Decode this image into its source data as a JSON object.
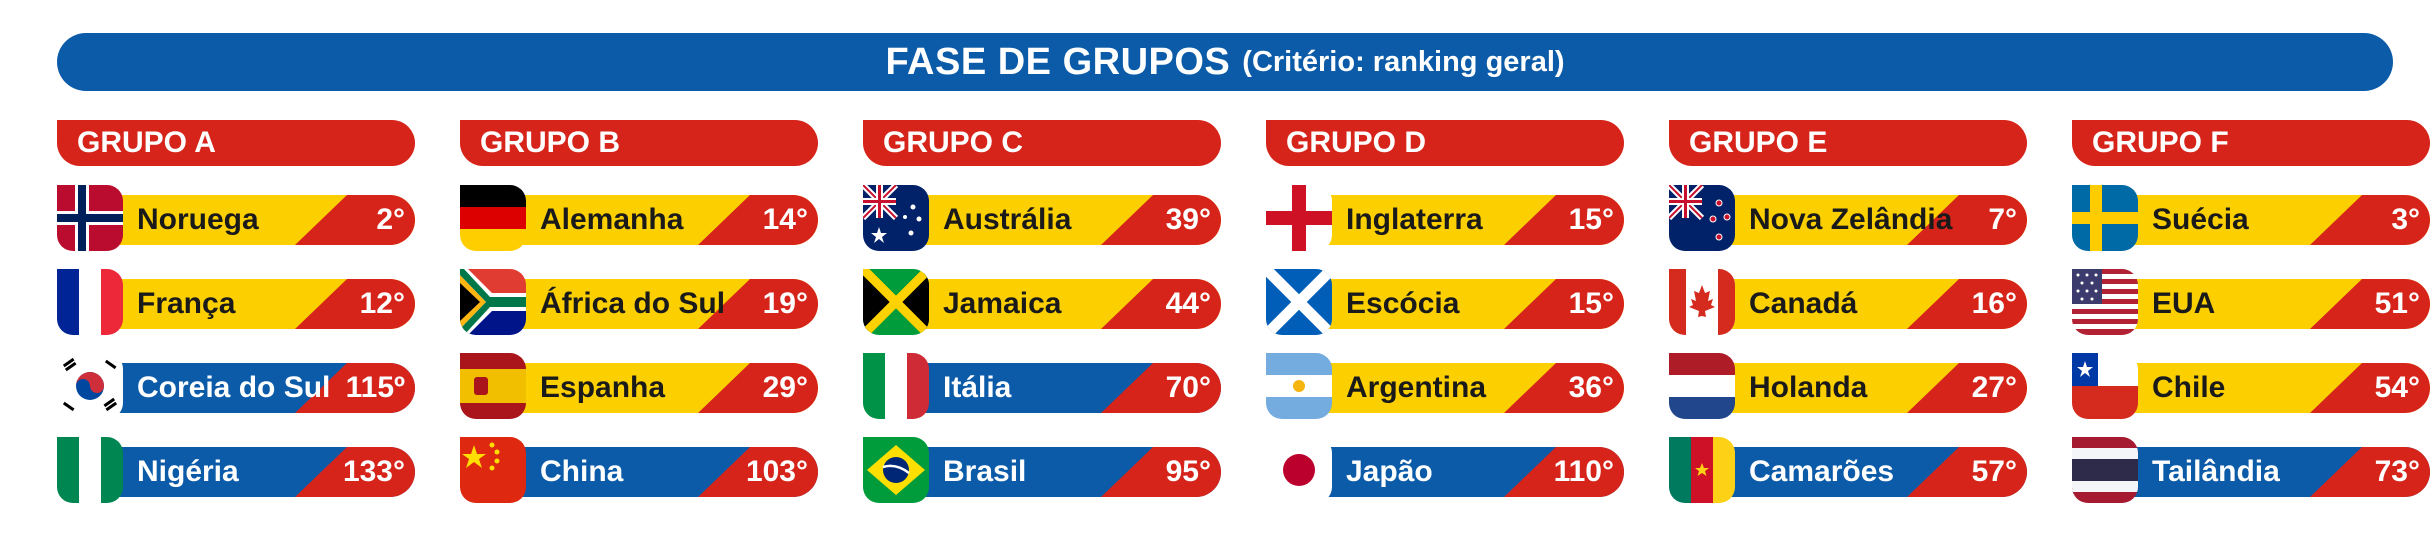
{
  "banner": {
    "title": "FASE DE GRUPOS",
    "subtitle": "(Critério: ranking geral)"
  },
  "colors": {
    "blue": "#0b5ba8",
    "red": "#d6241a",
    "yellow": "#fcd000"
  },
  "groups": [
    {
      "label": "GRUPO A",
      "teams": [
        {
          "name": "Noruega",
          "rank": "2°",
          "flag": "norway-flag",
          "style": "yellow"
        },
        {
          "name": "França",
          "rank": "12°",
          "flag": "france-flag",
          "style": "yellow"
        },
        {
          "name": "Coreia do Sul",
          "rank": "115º",
          "flag": "south-korea-flag",
          "style": "blue"
        },
        {
          "name": "Nigéria",
          "rank": "133°",
          "flag": "nigeria-flag",
          "style": "blue"
        }
      ]
    },
    {
      "label": "GRUPO B",
      "teams": [
        {
          "name": "Alemanha",
          "rank": "14°",
          "flag": "germany-flag",
          "style": "yellow"
        },
        {
          "name": "África do Sul",
          "rank": "19°",
          "flag": "south-africa-flag",
          "style": "yellow"
        },
        {
          "name": "Espanha",
          "rank": "29°",
          "flag": "spain-flag",
          "style": "yellow"
        },
        {
          "name": "China",
          "rank": "103°",
          "flag": "china-flag",
          "style": "blue"
        }
      ]
    },
    {
      "label": "GRUPO C",
      "teams": [
        {
          "name": "Austrália",
          "rank": "39°",
          "flag": "australia-flag",
          "style": "yellow"
        },
        {
          "name": "Jamaica",
          "rank": "44°",
          "flag": "jamaica-flag",
          "style": "yellow"
        },
        {
          "name": "Itália",
          "rank": "70°",
          "flag": "italy-flag",
          "style": "blue"
        },
        {
          "name": "Brasil",
          "rank": "95°",
          "flag": "brazil-flag",
          "style": "blue"
        }
      ]
    },
    {
      "label": "GRUPO D",
      "teams": [
        {
          "name": "Inglaterra",
          "rank": "15°",
          "flag": "england-flag",
          "style": "yellow"
        },
        {
          "name": "Escócia",
          "rank": "15°",
          "flag": "scotland-flag",
          "style": "yellow"
        },
        {
          "name": "Argentina",
          "rank": "36°",
          "flag": "argentina-flag",
          "style": "yellow"
        },
        {
          "name": "Japão",
          "rank": "110°",
          "flag": "japan-flag",
          "style": "blue"
        }
      ]
    },
    {
      "label": "GRUPO E",
      "teams": [
        {
          "name": "Nova Zelândia",
          "rank": "7°",
          "flag": "new-zealand-flag",
          "style": "yellow"
        },
        {
          "name": "Canadá",
          "rank": "16°",
          "flag": "canada-flag",
          "style": "yellow"
        },
        {
          "name": "Holanda",
          "rank": "27°",
          "flag": "netherlands-flag",
          "style": "yellow"
        },
        {
          "name": "Camarões",
          "rank": "57°",
          "flag": "cameroon-flag",
          "style": "blue"
        }
      ]
    },
    {
      "label": "GRUPO F",
      "teams": [
        {
          "name": "Suécia",
          "rank": "3°",
          "flag": "sweden-flag",
          "style": "yellow"
        },
        {
          "name": "EUA",
          "rank": "51°",
          "flag": "usa-flag",
          "style": "yellow"
        },
        {
          "name": "Chile",
          "rank": "54°",
          "flag": "chile-flag",
          "style": "yellow"
        },
        {
          "name": "Tailândia",
          "rank": "73°",
          "flag": "thailand-flag",
          "style": "blue"
        }
      ]
    }
  ]
}
